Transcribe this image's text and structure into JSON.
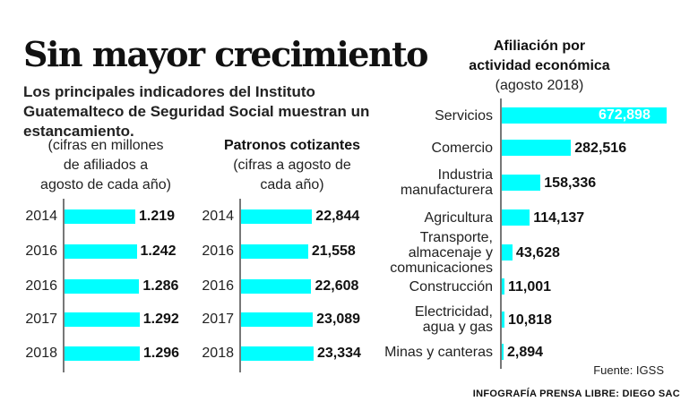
{
  "title": "Sin mayor crecimiento",
  "subtitle": "Los principales indicadores del Instituto Guatemalteco de Seguridad Social muestran un estancamiento.",
  "source": "Fuente: IGSS",
  "credit": "INFOGRAFÍA PRENSA LIBRE: DIEGO SAC",
  "bar_color": "#00ffff",
  "chart_data": [
    {
      "type": "bar",
      "title": "",
      "subtitle_lines": [
        "(cifras en millones",
        "de afiliados a",
        "agosto de cada año)"
      ],
      "categories": [
        "2014",
        "2016",
        "2016",
        "2017",
        "2018"
      ],
      "values": [
        1.219,
        1.242,
        1.286,
        1.292,
        1.296
      ],
      "labels": [
        "1.219",
        "1.242",
        "1.286",
        "1.292",
        "1.296"
      ],
      "orientation": "horizontal"
    },
    {
      "type": "bar",
      "title": "Patronos cotizantes",
      "subtitle_lines": [
        "(cifras a agosto de",
        "cada año)"
      ],
      "categories": [
        "2014",
        "2016",
        "2016",
        "2017",
        "2018"
      ],
      "values": [
        22844,
        21558,
        22608,
        23089,
        23334
      ],
      "labels": [
        "22,844",
        "21,558",
        "22,608",
        "23,089",
        "23,334"
      ],
      "orientation": "horizontal"
    },
    {
      "type": "bar",
      "title_lines": [
        "Afiliación por",
        "actividad económica"
      ],
      "subtitle_lines": [
        "(agosto 2018)"
      ],
      "categories": [
        "Servicios",
        "Comercio",
        "Industria manufacturera",
        "Agricultura",
        "Transporte, almacenaje y comunicaciones",
        "Construcción",
        "Electricidad, agua y gas",
        "Minas y canteras"
      ],
      "category_lines": [
        [
          "Servicios"
        ],
        [
          "Comercio"
        ],
        [
          "Industria",
          "manufacturera"
        ],
        [
          "Agricultura"
        ],
        [
          "Transporte,",
          "almacenaje y",
          "comunicaciones"
        ],
        [
          "Construcción"
        ],
        [
          "Electricidad,",
          "agua y gas"
        ],
        [
          "Minas y canteras"
        ]
      ],
      "values": [
        672898,
        282516,
        158336,
        114137,
        43628,
        11001,
        10818,
        2894
      ],
      "labels": [
        "672,898",
        "282,516",
        "158,336",
        "114,137",
        "43,628",
        "11,001",
        "10,818",
        "2,894"
      ],
      "orientation": "horizontal"
    }
  ]
}
